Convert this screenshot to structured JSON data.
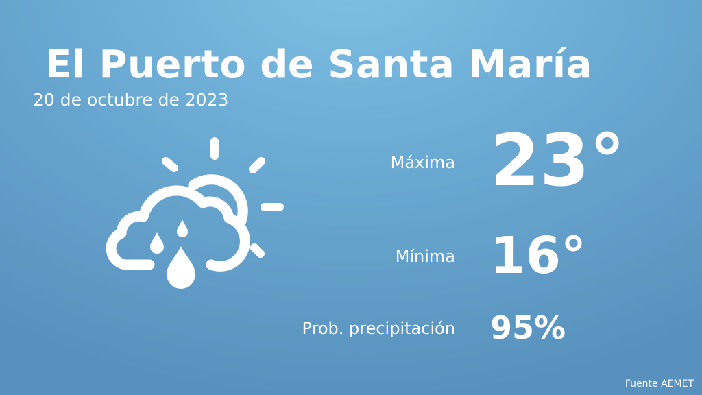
{
  "location": {
    "city": "El Puerto de Santa María",
    "date": "20 de octubre de 2023"
  },
  "forecast": {
    "icon": "cloud-rain-sun-icon",
    "max_label": "Máxima",
    "max_value": "23°",
    "min_label": "Mínima",
    "min_value": "16°",
    "precip_label": "Prob. precipitación",
    "precip_value": "95%"
  },
  "footer": {
    "source": "Fuente AEMET"
  },
  "colors": {
    "background_light": "#7fc0e6",
    "background_dark": "#5891bd",
    "text": "#ffffff"
  }
}
